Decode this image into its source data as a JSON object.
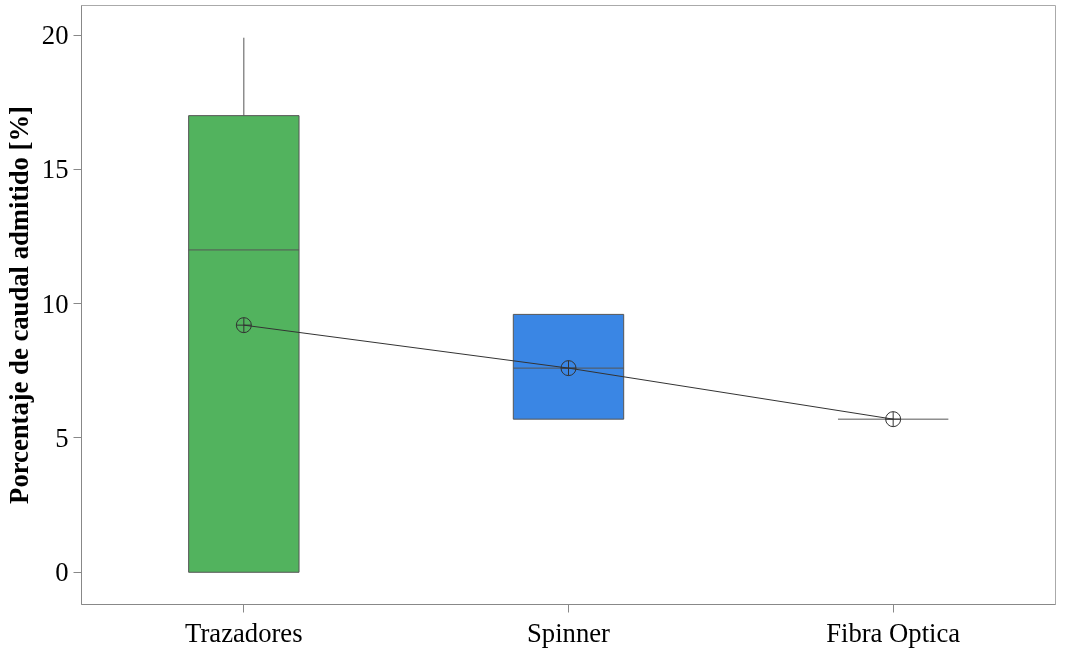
{
  "chart_data": {
    "type": "box",
    "ylabel": "Porcentaje de caudal admitido [%]",
    "categories": [
      "Trazadores",
      "Spinner",
      "Fibra Optica"
    ],
    "boxes": [
      {
        "low": 0,
        "q1": 0,
        "median": 12,
        "q3": 17,
        "high": 19.9
      },
      {
        "low": 5.7,
        "q1": 5.7,
        "median": 7.6,
        "q3": 9.6,
        "high": 9.6
      },
      {
        "low": 5.7,
        "q1": 5.7,
        "median": 5.7,
        "q3": 5.7,
        "high": 5.7
      }
    ],
    "colors": [
      "#52b35e",
      "#3a86e4",
      null
    ],
    "series": [
      {
        "type": "line",
        "color": "#333333",
        "values": [
          9.2,
          7.6,
          5.7
        ],
        "marker": "circle"
      }
    ],
    "ylim": [
      -1.2,
      21.1
    ],
    "yticks": [
      0,
      5,
      10,
      15,
      20
    ],
    "grid": false
  }
}
